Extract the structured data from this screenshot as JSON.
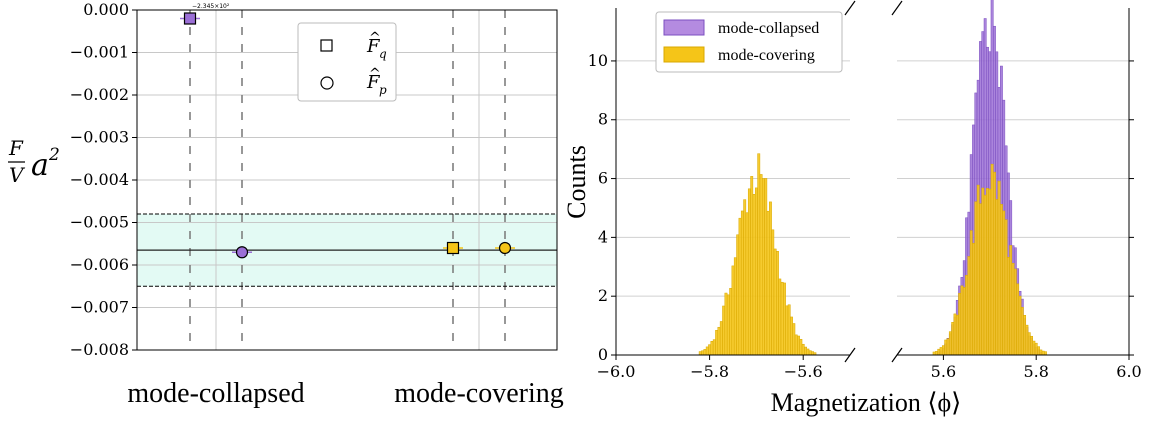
{
  "chart_data": [
    {
      "type": "scatter",
      "ylabel": "F/V a²",
      "ylim": [
        -0.008,
        0.0
      ],
      "yticks": [
        "0.000",
        "−0.001",
        "−0.002",
        "−0.003",
        "−0.004",
        "−0.005",
        "−0.006",
        "−0.007",
        "−0.008"
      ],
      "offset_text": "−2.345×10²",
      "categories": [
        "mode-collapsed",
        "mode-covering"
      ],
      "reference_line": -0.00565,
      "reference_band": [
        -0.0065,
        -0.0048
      ],
      "grid": true,
      "legend": {
        "position": "top-center",
        "entries": [
          "F̂q",
          "F̂p"
        ]
      },
      "series": [
        {
          "name": "F̂q",
          "marker": "square",
          "values": [
            -0.0002,
            -0.0056
          ]
        },
        {
          "name": "F̂p",
          "marker": "circle",
          "values": [
            -0.0057,
            -0.0056
          ]
        }
      ],
      "colors": {
        "mode_collapsed": "#9b6fd6",
        "mode_covering": "#f5c518",
        "band": "#e3faf4"
      }
    },
    {
      "type": "bar",
      "subtype": "histogram-broken-x-axis",
      "ylabel": "Counts",
      "xlabel": "Magnetization ⟨ϕ⟩",
      "ylim": [
        0,
        11.8
      ],
      "yticks": [
        "0",
        "2",
        "4",
        "6",
        "8",
        "10"
      ],
      "panels": [
        {
          "xlim": [
            -6.0,
            -5.5
          ],
          "xticks": [
            "−6.0",
            "−5.8",
            "−5.6"
          ]
        },
        {
          "xlim": [
            5.5,
            6.0
          ],
          "xticks": [
            "5.6",
            "5.8",
            "6.0"
          ]
        }
      ],
      "legend": {
        "position": "top-left",
        "entries": [
          "mode-collapsed",
          "mode-covering"
        ]
      },
      "series": [
        {
          "name": "mode-collapsed",
          "color": "#9b6fd6",
          "panel": 1,
          "center": 5.7,
          "peak": 11.4,
          "width": 0.036
        },
        {
          "name": "mode-covering",
          "color": "#f5c518",
          "panel": 0,
          "center": -5.7,
          "peak": 6.1,
          "width": 0.042
        },
        {
          "name": "mode-covering",
          "color": "#f5c518",
          "panel": 1,
          "center": 5.7,
          "peak": 6.1,
          "width": 0.042
        }
      ]
    }
  ]
}
